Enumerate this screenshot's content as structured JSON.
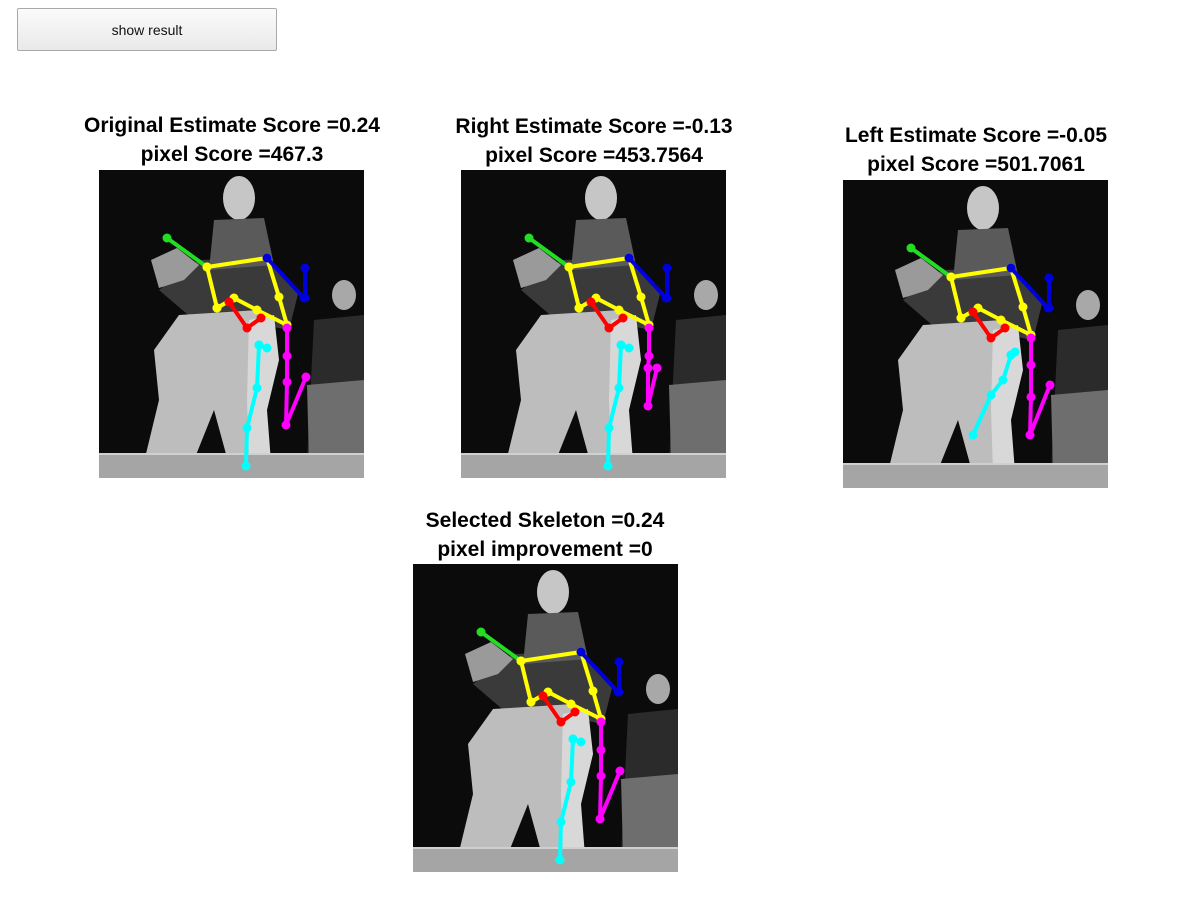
{
  "toolbar": {
    "show_result_label": "show result"
  },
  "panels": {
    "original": {
      "line1": "Original Estimate Score =0.24",
      "line2": "pixel Score =467.3"
    },
    "right": {
      "line1": "Right Estimate Score =-0.13",
      "line2": "pixel Score =453.7564"
    },
    "left": {
      "line1": "Left Estimate Score =-0.05",
      "line2": "pixel Score =501.7061"
    },
    "selected": {
      "line1": "Selected Skeleton =0.24",
      "line2": "pixel improvement =0"
    }
  },
  "limb_colors": {
    "left_arm": "#22dd22",
    "torso": "#ffff00",
    "right_arm": "#0000dd",
    "hips": "#ff0000",
    "right_leg": "#00ffff",
    "left_leg": "#ff00ff"
  }
}
